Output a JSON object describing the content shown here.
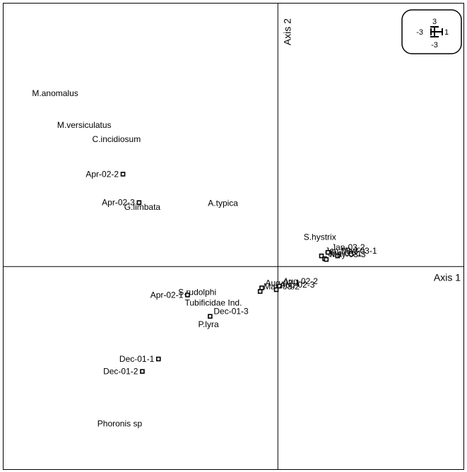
{
  "chart_data": {
    "type": "scatter",
    "title": "",
    "axis1_label": "Axis 1",
    "axis2_label": "Axis 2",
    "xlim": [
      -8.5,
      5.75
    ],
    "ylim": [
      -5.7,
      7.4
    ],
    "scale_box": {
      "top": "3",
      "bottom": "-3",
      "left": "-3",
      "right": "1"
    },
    "samples": [
      {
        "label": "Apr-02-2",
        "x": -4.8,
        "y": 2.6
      },
      {
        "label": "Apr-02-3",
        "x": -4.3,
        "y": 1.8
      },
      {
        "label": "Apr-02-1",
        "x": -2.8,
        "y": -0.8
      },
      {
        "label": "Aug-02-1",
        "x": -0.5,
        "y": -0.6
      },
      {
        "label": "May-03-2",
        "x": -0.55,
        "y": -0.7
      },
      {
        "label": "Aug-02-2",
        "x": 0.05,
        "y": -0.55
      },
      {
        "label": "Aug-02-3",
        "x": -0.05,
        "y": -0.65
      },
      {
        "label": "Dec-01-3",
        "x": -2.1,
        "y": -1.4
      },
      {
        "label": "Dec-01-1",
        "x": -3.7,
        "y": -2.6
      },
      {
        "label": "Dec-01-2",
        "x": -4.2,
        "y": -2.95
      },
      {
        "label": "Jan-03-3",
        "x": 1.35,
        "y": 0.3
      },
      {
        "label": "Jan-03-1",
        "x": 1.45,
        "y": 0.22
      },
      {
        "label": "Jan-03-2",
        "x": 1.55,
        "y": 0.4
      },
      {
        "label": "May-03-1",
        "x": 1.85,
        "y": 0.3
      },
      {
        "label": "May-03-3",
        "x": 1.5,
        "y": 0.2
      }
    ],
    "species": [
      {
        "label": "M.anomalus",
        "x": -6.9,
        "y": 4.8
      },
      {
        "label": "M.versiculatus",
        "x": -6.0,
        "y": 3.9
      },
      {
        "label": "C.incidiosum",
        "x": -5.0,
        "y": 3.5
      },
      {
        "label": "G.limbata",
        "x": -4.2,
        "y": 1.6
      },
      {
        "label": "A.typica",
        "x": -1.7,
        "y": 1.7
      },
      {
        "label": "S.hystrix",
        "x": 1.3,
        "y": 0.75
      },
      {
        "label": "S.rudolphi",
        "x": -2.5,
        "y": -0.8
      },
      {
        "label": "Tubificidae Ind.",
        "x": -2.0,
        "y": -1.1
      },
      {
        "label": "P.lyra",
        "x": -2.15,
        "y": -1.7
      },
      {
        "label": "Phoronis sp",
        "x": -4.9,
        "y": -4.5
      }
    ]
  }
}
